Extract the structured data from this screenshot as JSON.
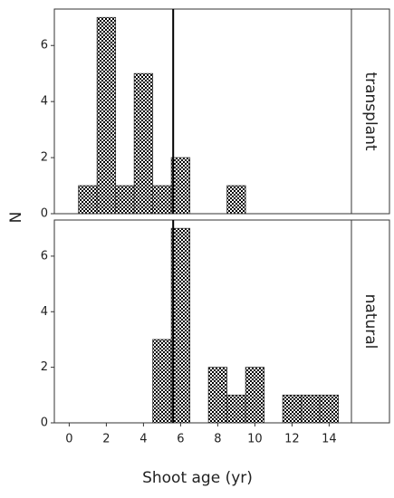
{
  "chart_data": [
    {
      "type": "histogram",
      "facet": "transplant",
      "ylabel": "N",
      "bins": [
        0.5,
        1.5,
        2.5,
        3.5,
        4.5,
        5.5,
        6.5,
        7.5,
        8.5,
        9.5,
        10.5,
        11.5,
        12.5,
        13.5,
        14.5
      ],
      "values": [
        1,
        7,
        1,
        5,
        1,
        2,
        0,
        0,
        1,
        0,
        0,
        0,
        0,
        0
      ],
      "xlim": [
        -0.8,
        15.2
      ],
      "ylim": [
        0,
        7.3
      ],
      "yticks": [
        0,
        2,
        4,
        6
      ],
      "ref_line": 5.6,
      "color": "#000000"
    },
    {
      "type": "histogram",
      "facet": "natural",
      "xlabel": "Shoot age (yr)",
      "bins": [
        0.5,
        1.5,
        2.5,
        3.5,
        4.5,
        5.5,
        6.5,
        7.5,
        8.5,
        9.5,
        10.5,
        11.5,
        12.5,
        13.5,
        14.5
      ],
      "values": [
        0,
        0,
        0,
        0,
        3,
        7,
        0,
        2,
        1,
        2,
        0,
        1,
        1,
        1
      ],
      "xlim": [
        -0.8,
        15.2
      ],
      "ylim": [
        0,
        7.3
      ],
      "yticks": [
        0,
        2,
        4,
        6
      ],
      "xticks": [
        0,
        2,
        4,
        6,
        8,
        10,
        12,
        14
      ],
      "ref_line": 5.6,
      "color": "#000000"
    }
  ]
}
